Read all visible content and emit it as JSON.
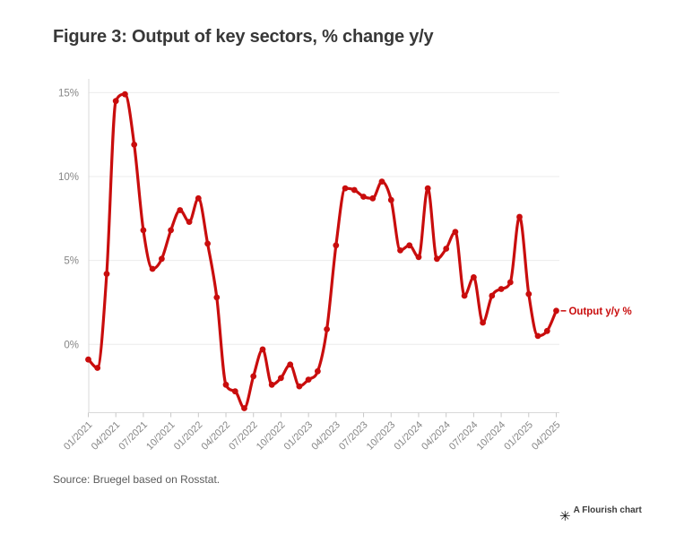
{
  "header": {
    "title": "Figure 3: Output of key sectors, % change y/y"
  },
  "chart_data": {
    "type": "line",
    "title": "Figure 3: Output of key sectors, % change y/y",
    "x": [
      "01/2021",
      "02/2021",
      "03/2021",
      "04/2021",
      "05/2021",
      "06/2021",
      "07/2021",
      "08/2021",
      "09/2021",
      "10/2021",
      "11/2021",
      "12/2021",
      "01/2022",
      "02/2022",
      "03/2022",
      "04/2022",
      "05/2022",
      "06/2022",
      "07/2022",
      "08/2022",
      "09/2022",
      "10/2022",
      "11/2022",
      "12/2022",
      "01/2023",
      "02/2023",
      "03/2023",
      "04/2023",
      "05/2023",
      "06/2023",
      "07/2023",
      "08/2023",
      "09/2023",
      "10/2023",
      "11/2023",
      "12/2023",
      "01/2024",
      "02/2024",
      "03/2024",
      "04/2024",
      "05/2024",
      "06/2024",
      "07/2024",
      "08/2024",
      "09/2024",
      "10/2024",
      "11/2024",
      "12/2024",
      "01/2025",
      "02/2025",
      "03/2025",
      "04/2025"
    ],
    "series": [
      {
        "name": "Output y/y %",
        "color": "#c90d0d",
        "values": [
          -0.9,
          -1.4,
          4.2,
          14.5,
          14.9,
          11.9,
          6.8,
          4.5,
          5.1,
          6.8,
          8.0,
          7.3,
          8.7,
          6.0,
          2.8,
          -2.4,
          -2.8,
          -3.8,
          -1.9,
          -0.3,
          -2.4,
          -2.0,
          -1.2,
          -2.5,
          -2.1,
          -1.6,
          0.9,
          5.9,
          9.3,
          9.2,
          8.8,
          8.7,
          9.7,
          8.6,
          5.6,
          5.9,
          5.2,
          9.3,
          5.1,
          5.7,
          6.7,
          2.9,
          4.0,
          1.3,
          2.9,
          3.3,
          3.7,
          7.6,
          3.0,
          0.5,
          0.8,
          2.0
        ]
      }
    ],
    "x_tick_labels": [
      "01/2021",
      "04/2021",
      "07/2021",
      "10/2021",
      "01/2022",
      "04/2022",
      "07/2022",
      "10/2022",
      "01/2023",
      "04/2023",
      "07/2023",
      "10/2023",
      "01/2024",
      "04/2024",
      "07/2024",
      "10/2024",
      "01/2025",
      "04/2025"
    ],
    "y_ticks": [
      {
        "value": 0,
        "label": "0%"
      },
      {
        "value": 5,
        "label": "5%"
      },
      {
        "value": 10,
        "label": "10%"
      },
      {
        "value": 15,
        "label": "15%"
      }
    ],
    "ylim": [
      -4.1,
      15.8
    ],
    "grid": "horizontal",
    "legend": "direct-label-at-line-end",
    "series_end_label": "Output y/y %",
    "colors": {
      "line": "#c90d0d",
      "gridline": "#ebebeb",
      "axis_line": "#d9d9d9",
      "tick_mark": "#c8c8c8",
      "axis_text": "#868686"
    }
  },
  "source": {
    "text": "Source: Bruegel based on Rosstat."
  },
  "attribution": {
    "label": "A Flourish chart",
    "icon": "flourish-asterisk-icon",
    "icon_glyph": "✳"
  }
}
